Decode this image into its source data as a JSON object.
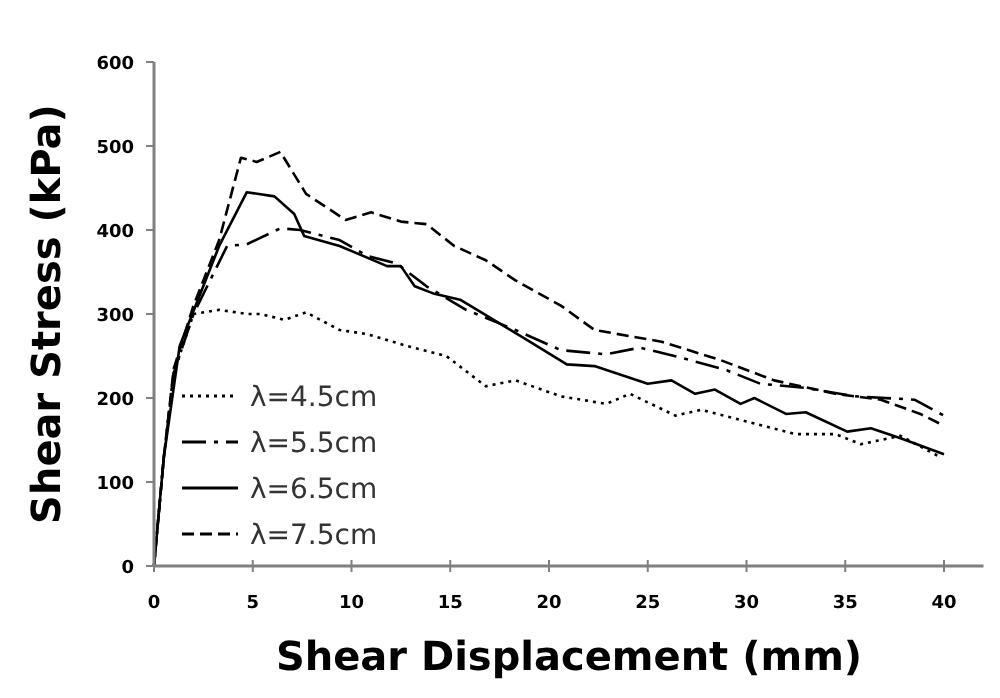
{
  "chart_data": {
    "type": "line",
    "xlabel": "Shear Displacement  (mm)",
    "ylabel": "Shear Stress  (kPa)",
    "xlim": [
      0,
      42
    ],
    "ylim": [
      0,
      600
    ],
    "xticks": [
      0,
      5,
      10,
      15,
      20,
      25,
      30,
      35,
      40
    ],
    "yticks": [
      0,
      100,
      200,
      300,
      400,
      500,
      600
    ],
    "grid": false,
    "legend": "bottom left",
    "series": [
      {
        "name": "λ=4.5cm",
        "color": "#000000",
        "line_style": "dotted",
        "x": [
          0,
          0.5,
          1,
          2,
          3.3,
          4.7,
          5.4,
          6.6,
          7.7,
          9.4,
          10.8,
          12.8,
          14.8,
          16.8,
          18.3,
          20.6,
          22.9,
          24.1,
          26.4,
          27.7,
          29.7,
          32.5,
          34.5,
          35.8,
          37.8,
          39.7
        ],
        "values": [
          0,
          130,
          230,
          300,
          305,
          300,
          300,
          293,
          302,
          281,
          276,
          262,
          250,
          214,
          221,
          202,
          193,
          205,
          179,
          186,
          174,
          157,
          157,
          145,
          155,
          131
        ]
      },
      {
        "name": "λ=5.5cm",
        "color": "#000000",
        "line_style": "dashdot",
        "x": [
          0,
          0.5,
          1,
          2,
          3.7,
          4.7,
          6.4,
          7.4,
          9.4,
          10.8,
          12.3,
          13.8,
          15.8,
          18.3,
          20.6,
          22.9,
          24.6,
          26.7,
          29,
          30.7,
          33,
          35.5,
          38.5,
          40
        ],
        "values": [
          0,
          130,
          230,
          300,
          381,
          383,
          402,
          400,
          388,
          369,
          360,
          333,
          305,
          281,
          257,
          252,
          260,
          248,
          233,
          217,
          212,
          202,
          198,
          179
        ]
      },
      {
        "name": "λ=6.5cm",
        "color": "#000000",
        "line_style": "solid",
        "x": [
          0,
          0.5,
          1.3,
          3.3,
          4.7,
          6.1,
          7.1,
          7.6,
          9.4,
          10.4,
          11.8,
          12.5,
          13.2,
          14.2,
          15.5,
          17.2,
          18.9,
          20.9,
          22.3,
          25,
          26.2,
          27.4,
          28.4,
          29.7,
          30.4,
          32,
          33,
          35.1,
          36.3,
          37.8,
          40
        ],
        "values": [
          0,
          130,
          262,
          381,
          445,
          440,
          419,
          393,
          381,
          371,
          357,
          357,
          333,
          324,
          317,
          293,
          269,
          240,
          238,
          217,
          221,
          205,
          210,
          193,
          200,
          181,
          183,
          160,
          164,
          152,
          133
        ]
      },
      {
        "name": "λ=7.5cm",
        "color": "#000000",
        "line_style": "dashed",
        "x": [
          0,
          0.5,
          1,
          2,
          3.3,
          4.4,
          5.2,
          6.4,
          7.7,
          9.7,
          11,
          12.5,
          13.8,
          15.2,
          16.8,
          18.3,
          20.6,
          22.3,
          25.7,
          28.7,
          31.4,
          34.5,
          36.8,
          38.8,
          40
        ],
        "values": [
          0,
          130,
          235,
          310,
          388,
          486,
          481,
          493,
          443,
          412,
          421,
          410,
          407,
          381,
          364,
          340,
          310,
          281,
          267,
          245,
          221,
          205,
          198,
          181,
          167
        ]
      }
    ]
  }
}
